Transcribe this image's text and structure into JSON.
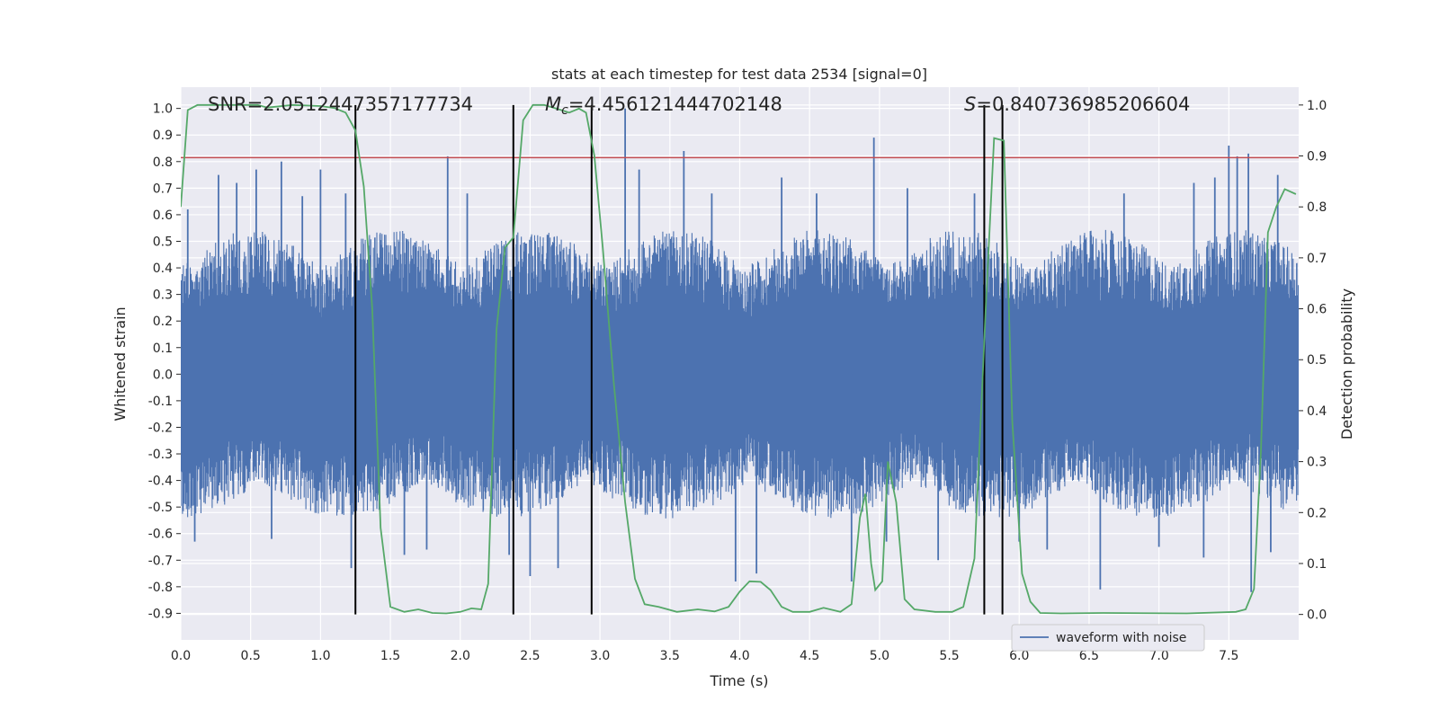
{
  "chart_data": {
    "type": "line",
    "title": "stats at each timestep for test data 2534 [signal=0]",
    "xlabel": "Time (s)",
    "ylabel_left": "Whitened strain",
    "ylabel_right": "Detection probability",
    "xlim": [
      0.0,
      8.0
    ],
    "ylim_left": [
      -1.0,
      1.08
    ],
    "ylim_right": [
      -0.05,
      1.035
    ],
    "x_ticks": [
      "0.0",
      "0.5",
      "1.0",
      "1.5",
      "2.0",
      "2.5",
      "3.0",
      "3.5",
      "4.0",
      "4.5",
      "5.0",
      "5.5",
      "6.0",
      "6.5",
      "7.0",
      "7.5"
    ],
    "y_ticks_left": [
      "1.0",
      "0.9",
      "0.8",
      "0.7",
      "0.6",
      "0.5",
      "0.4",
      "0.3",
      "0.2",
      "0.1",
      "0.0",
      "-0.1",
      "-0.2",
      "-0.3",
      "-0.4",
      "-0.5",
      "-0.6",
      "-0.7",
      "-0.8",
      "-0.9"
    ],
    "y_ticks_right": [
      "1.0",
      "0.9",
      "0.8",
      "0.7",
      "0.6",
      "0.5",
      "0.4",
      "0.3",
      "0.2",
      "0.1",
      "0.0"
    ],
    "annotations": {
      "snr": "SNR=2.0512447357177734",
      "mc_symbol": "M",
      "mc_sub": "c",
      "mc_value": "=4.456121444702148",
      "s_symbol": "S",
      "s_value": "=0.840736985206604"
    },
    "threshold": {
      "value_left": 0.815,
      "color": "#c44e52"
    },
    "vlines": [
      1.25,
      2.38,
      2.94,
      5.75,
      5.88
    ],
    "vline_ymax": 1.0,
    "waveform": {
      "name": "waveform with noise",
      "color": "#4c72b0",
      "core_amplitude": 0.43,
      "spikes": [
        {
          "t": 0.05,
          "y": 0.62
        },
        {
          "t": 0.1,
          "y": -0.63
        },
        {
          "t": 0.27,
          "y": 0.75
        },
        {
          "t": 0.4,
          "y": 0.72
        },
        {
          "t": 0.54,
          "y": 0.77
        },
        {
          "t": 0.65,
          "y": -0.62
        },
        {
          "t": 0.72,
          "y": 0.8
        },
        {
          "t": 0.87,
          "y": 0.67
        },
        {
          "t": 1.0,
          "y": 0.77
        },
        {
          "t": 1.18,
          "y": 0.68
        },
        {
          "t": 1.22,
          "y": -0.73
        },
        {
          "t": 1.6,
          "y": -0.68
        },
        {
          "t": 1.76,
          "y": -0.66
        },
        {
          "t": 1.91,
          "y": 0.82
        },
        {
          "t": 2.05,
          "y": 0.68
        },
        {
          "t": 2.35,
          "y": -0.68
        },
        {
          "t": 2.5,
          "y": -0.76
        },
        {
          "t": 2.7,
          "y": -0.73
        },
        {
          "t": 3.18,
          "y": 1.0
        },
        {
          "t": 3.28,
          "y": 0.77
        },
        {
          "t": 3.6,
          "y": 0.84
        },
        {
          "t": 3.8,
          "y": 0.68
        },
        {
          "t": 3.97,
          "y": -0.78
        },
        {
          "t": 4.12,
          "y": -0.75
        },
        {
          "t": 4.3,
          "y": 0.74
        },
        {
          "t": 4.55,
          "y": 0.68
        },
        {
          "t": 4.8,
          "y": -0.78
        },
        {
          "t": 4.96,
          "y": 0.89
        },
        {
          "t": 5.05,
          "y": -0.63
        },
        {
          "t": 5.2,
          "y": 0.7
        },
        {
          "t": 5.42,
          "y": -0.7
        },
        {
          "t": 5.68,
          "y": 0.68
        },
        {
          "t": 6.0,
          "y": -0.63
        },
        {
          "t": 6.2,
          "y": -0.66
        },
        {
          "t": 6.58,
          "y": -0.81
        },
        {
          "t": 6.75,
          "y": 0.68
        },
        {
          "t": 7.0,
          "y": -0.65
        },
        {
          "t": 7.25,
          "y": 0.72
        },
        {
          "t": 7.32,
          "y": -0.69
        },
        {
          "t": 7.4,
          "y": 0.74
        },
        {
          "t": 7.5,
          "y": 0.86
        },
        {
          "t": 7.56,
          "y": 0.82
        },
        {
          "t": 7.64,
          "y": 0.83
        },
        {
          "t": 7.66,
          "y": -0.82
        },
        {
          "t": 7.8,
          "y": -0.67
        },
        {
          "t": 7.85,
          "y": 0.75
        }
      ]
    },
    "probability": {
      "color": "#55a868",
      "points": [
        [
          0.0,
          0.8
        ],
        [
          0.05,
          0.99
        ],
        [
          0.12,
          1.0
        ],
        [
          0.3,
          1.0
        ],
        [
          0.55,
          1.0
        ],
        [
          0.62,
          0.995
        ],
        [
          0.8,
          1.0
        ],
        [
          1.0,
          0.998
        ],
        [
          1.1,
          0.994
        ],
        [
          1.18,
          0.985
        ],
        [
          1.25,
          0.95
        ],
        [
          1.31,
          0.84
        ],
        [
          1.37,
          0.6
        ],
        [
          1.43,
          0.17
        ],
        [
          1.5,
          0.015
        ],
        [
          1.6,
          0.005
        ],
        [
          1.7,
          0.01
        ],
        [
          1.8,
          0.003
        ],
        [
          1.9,
          0.002
        ],
        [
          2.0,
          0.005
        ],
        [
          2.08,
          0.012
        ],
        [
          2.15,
          0.01
        ],
        [
          2.2,
          0.06
        ],
        [
          2.26,
          0.56
        ],
        [
          2.32,
          0.72
        ],
        [
          2.38,
          0.74
        ],
        [
          2.45,
          0.97
        ],
        [
          2.52,
          1.0
        ],
        [
          2.6,
          1.0
        ],
        [
          2.7,
          0.992
        ],
        [
          2.78,
          0.985
        ],
        [
          2.85,
          0.993
        ],
        [
          2.9,
          0.985
        ],
        [
          2.96,
          0.9
        ],
        [
          3.02,
          0.72
        ],
        [
          3.1,
          0.45
        ],
        [
          3.18,
          0.22
        ],
        [
          3.25,
          0.07
        ],
        [
          3.32,
          0.02
        ],
        [
          3.42,
          0.015
        ],
        [
          3.55,
          0.005
        ],
        [
          3.7,
          0.01
        ],
        [
          3.82,
          0.006
        ],
        [
          3.92,
          0.015
        ],
        [
          4.0,
          0.045
        ],
        [
          4.07,
          0.065
        ],
        [
          4.15,
          0.064
        ],
        [
          4.22,
          0.048
        ],
        [
          4.3,
          0.015
        ],
        [
          4.38,
          0.005
        ],
        [
          4.5,
          0.005
        ],
        [
          4.6,
          0.013
        ],
        [
          4.72,
          0.005
        ],
        [
          4.8,
          0.02
        ],
        [
          4.86,
          0.19
        ],
        [
          4.9,
          0.237
        ],
        [
          4.94,
          0.1
        ],
        [
          4.97,
          0.048
        ],
        [
          5.02,
          0.065
        ],
        [
          5.06,
          0.3
        ],
        [
          5.12,
          0.22
        ],
        [
          5.18,
          0.03
        ],
        [
          5.25,
          0.01
        ],
        [
          5.4,
          0.005
        ],
        [
          5.52,
          0.005
        ],
        [
          5.6,
          0.015
        ],
        [
          5.68,
          0.11
        ],
        [
          5.76,
          0.6
        ],
        [
          5.82,
          0.935
        ],
        [
          5.89,
          0.93
        ],
        [
          5.95,
          0.38
        ],
        [
          6.02,
          0.08
        ],
        [
          6.08,
          0.025
        ],
        [
          6.15,
          0.003
        ],
        [
          6.3,
          0.002
        ],
        [
          6.6,
          0.003
        ],
        [
          7.2,
          0.002
        ],
        [
          7.55,
          0.005
        ],
        [
          7.62,
          0.01
        ],
        [
          7.68,
          0.05
        ],
        [
          7.73,
          0.32
        ],
        [
          7.78,
          0.75
        ],
        [
          7.84,
          0.8
        ],
        [
          7.9,
          0.835
        ],
        [
          7.98,
          0.825
        ]
      ]
    },
    "legend": {
      "position": "lower-right",
      "label": "waveform with noise"
    }
  }
}
